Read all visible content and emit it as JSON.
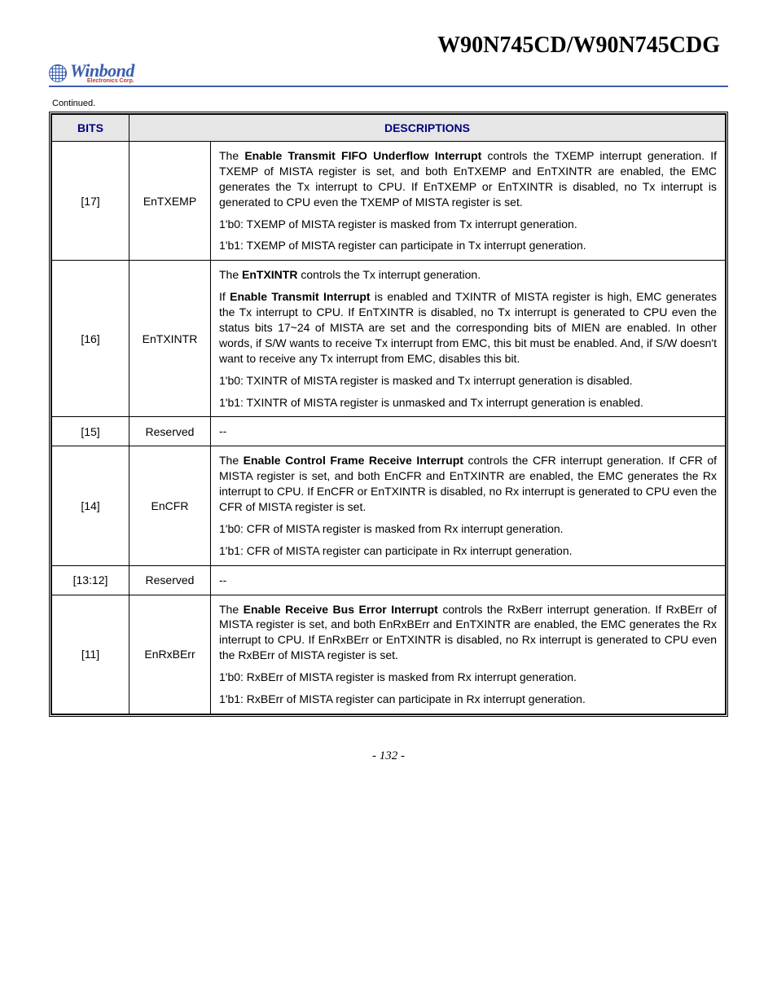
{
  "header": {
    "doc_title": "W90N745CD/W90N745CDG",
    "logo_name": "Winbond",
    "logo_sub": "Electronics Corp.",
    "continued": "Continued."
  },
  "table": {
    "header_bits": "BITS",
    "header_desc": "DESCRIPTIONS",
    "rows": [
      {
        "bits": "[17]",
        "name": "EnTXEMP",
        "paras": [
          {
            "pre": "The ",
            "bold": "Enable Transmit FIFO Underflow Interrupt",
            "post": " controls the TXEMP interrupt generation. If TXEMP of MISTA register is set, and both EnTXEMP and EnTXINTR are enabled, the EMC generates the Tx interrupt to CPU. If EnTXEMP or EnTXINTR is disabled, no Tx interrupt is generated to CPU even the TXEMP of MISTA register is set.",
            "justify": true
          },
          {
            "text": "1'b0: TXEMP of MISTA register is masked from Tx interrupt generation."
          },
          {
            "text": "1'b1: TXEMP of MISTA register can participate in Tx interrupt generation."
          }
        ]
      },
      {
        "bits": "[16]",
        "name": "EnTXINTR",
        "paras": [
          {
            "pre": "The ",
            "bold": "EnTXINTR",
            "post": " controls the Tx interrupt generation."
          },
          {
            "pre": "If ",
            "bold": "Enable Transmit Interrupt",
            "post": " is enabled and TXINTR of MISTA register is high, EMC generates the Tx interrupt to CPU. If EnTXINTR is disabled, no Tx interrupt is generated to CPU even the status bits 17~24 of MISTA are set and the corresponding bits of MIEN are enabled. In other words, if S/W wants to receive Tx interrupt from EMC, this bit must be enabled. And, if S/W doesn't want to receive any Tx interrupt from EMC, disables this bit.",
            "justify": true
          },
          {
            "text": "1'b0: TXINTR of MISTA register is masked and Tx interrupt generation is disabled."
          },
          {
            "text": "1'b1: TXINTR of MISTA register is unmasked and Tx interrupt generation is enabled.",
            "justify": true
          }
        ]
      },
      {
        "bits": "[15]",
        "name": "Reserved",
        "paras": [
          {
            "text": "--"
          }
        ]
      },
      {
        "bits": "[14]",
        "name": "EnCFR",
        "paras": [
          {
            "pre": "The ",
            "bold": "Enable Control Frame Receive Interrupt",
            "post": " controls the CFR interrupt generation. If CFR of MISTA register is set, and both EnCFR and EnTXINTR are enabled, the EMC generates the Rx interrupt to CPU. If EnCFR or EnTXINTR is disabled, no Rx interrupt is generated to CPU even the CFR of MISTA register is set.",
            "justify": true
          },
          {
            "text": "1'b0: CFR of MISTA register is masked from Rx interrupt generation."
          },
          {
            "text": "1'b1: CFR of MISTA register can participate in Rx interrupt generation."
          }
        ]
      },
      {
        "bits": "[13:12]",
        "name": "Reserved",
        "paras": [
          {
            "text": "--"
          }
        ]
      },
      {
        "bits": "[11]",
        "name": "EnRxBErr",
        "paras": [
          {
            "pre": "The ",
            "bold": "Enable Receive Bus Error Interrupt",
            "post": " controls the RxBerr interrupt generation. If RxBErr of MISTA register is set, and both EnRxBErr and EnTXINTR are enabled, the EMC generates the Rx interrupt to CPU. If EnRxBErr or EnTXINTR is disabled, no Rx interrupt is generated to CPU even the RxBErr of MISTA register is set.",
            "justify": true
          },
          {
            "text": "1'b0: RxBErr of MISTA register is masked from Rx interrupt generation."
          },
          {
            "text": "1'b1: RxBErr of MISTA register can participate in Rx interrupt generation.",
            "justify": true
          }
        ]
      }
    ]
  },
  "footer": {
    "page": "- 132 -"
  }
}
